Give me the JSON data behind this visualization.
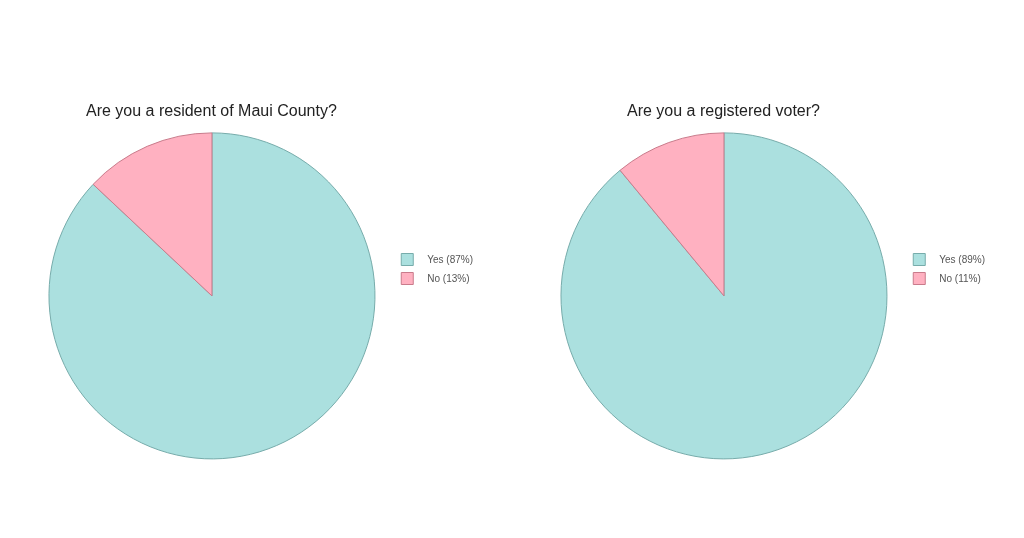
{
  "chart_data": [
    {
      "type": "pie",
      "title": "Are you a resident of Maui County?",
      "categories": [
        "Yes (87%)",
        "No (13%)"
      ],
      "values": [
        87,
        13
      ],
      "colors": [
        "#abe0df",
        "#ffb1c1"
      ],
      "legend": "right"
    },
    {
      "type": "pie",
      "title": "Are you a registered voter?",
      "categories": [
        "Yes (89%)",
        "No (11%)"
      ],
      "values": [
        89,
        11
      ],
      "colors": [
        "#abe0df",
        "#ffb1c1"
      ],
      "legend": "right"
    }
  ]
}
